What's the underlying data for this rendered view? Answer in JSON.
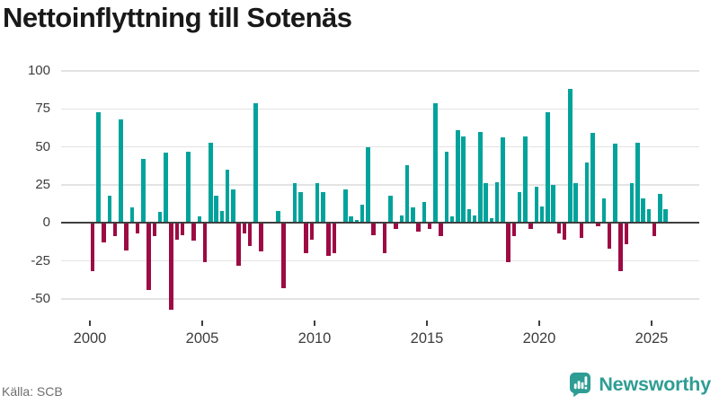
{
  "title": "Nettoinflyttning till Sotenäs",
  "source": "Källa: SCB",
  "brand": {
    "name": "Newsworthy",
    "icon": "newsworthy-speech-bubble-bar-chart-icon"
  },
  "colors": {
    "positive_bar": "#00a39b",
    "negative_bar": "#9d0a44",
    "gridline": "#e3e3e3",
    "zero_line": "#3f3f3f",
    "axis_text": "#3d3d3d",
    "muted_text": "#6e6e6e",
    "brand_teal": "#2e9d93",
    "title_text": "#191919"
  },
  "chart_data": {
    "type": "bar",
    "title": "Nettoinflyttning till Sotenäs",
    "frequency": "quarterly",
    "start": "2000 Q1",
    "end": "2025 Q3",
    "xlabel": "",
    "ylabel": "",
    "grid": "horizontal",
    "legend": "none",
    "ylim": [
      -62,
      106
    ],
    "y_tick_labels": [
      "100",
      "75",
      "50",
      "25",
      "0",
      "-25",
      "-50"
    ],
    "x_tick_labels": [
      "2000",
      "2005",
      "2010",
      "2015",
      "2020",
      "2025"
    ],
    "series_note": "net migration per quarter; teal when positive, dark red when negative",
    "values": [
      -32,
      73,
      -13,
      18,
      -9,
      68,
      -18,
      10,
      -7,
      42,
      -44,
      -9,
      7,
      46,
      -57,
      -11,
      -8,
      47,
      -12,
      4,
      -26,
      53,
      18,
      8,
      35,
      22,
      -28,
      -7,
      -15,
      79,
      -19,
      0,
      0,
      8,
      -43,
      0,
      26,
      20,
      -20,
      -11,
      26,
      20,
      -22,
      -20,
      0,
      22,
      4,
      2,
      12,
      50,
      -8,
      0,
      -20,
      18,
      -4,
      5,
      38,
      10,
      -6,
      14,
      -4,
      79,
      -9,
      47,
      4,
      61,
      57,
      9,
      5,
      60,
      26,
      3,
      27,
      56,
      -26,
      -9,
      20,
      57,
      -4,
      24,
      11,
      73,
      25,
      -7,
      -11,
      88,
      26,
      -10,
      40,
      59,
      -2,
      16,
      -17,
      52,
      -32,
      -14,
      26,
      53,
      16,
      9,
      -9,
      19,
      9
    ]
  }
}
